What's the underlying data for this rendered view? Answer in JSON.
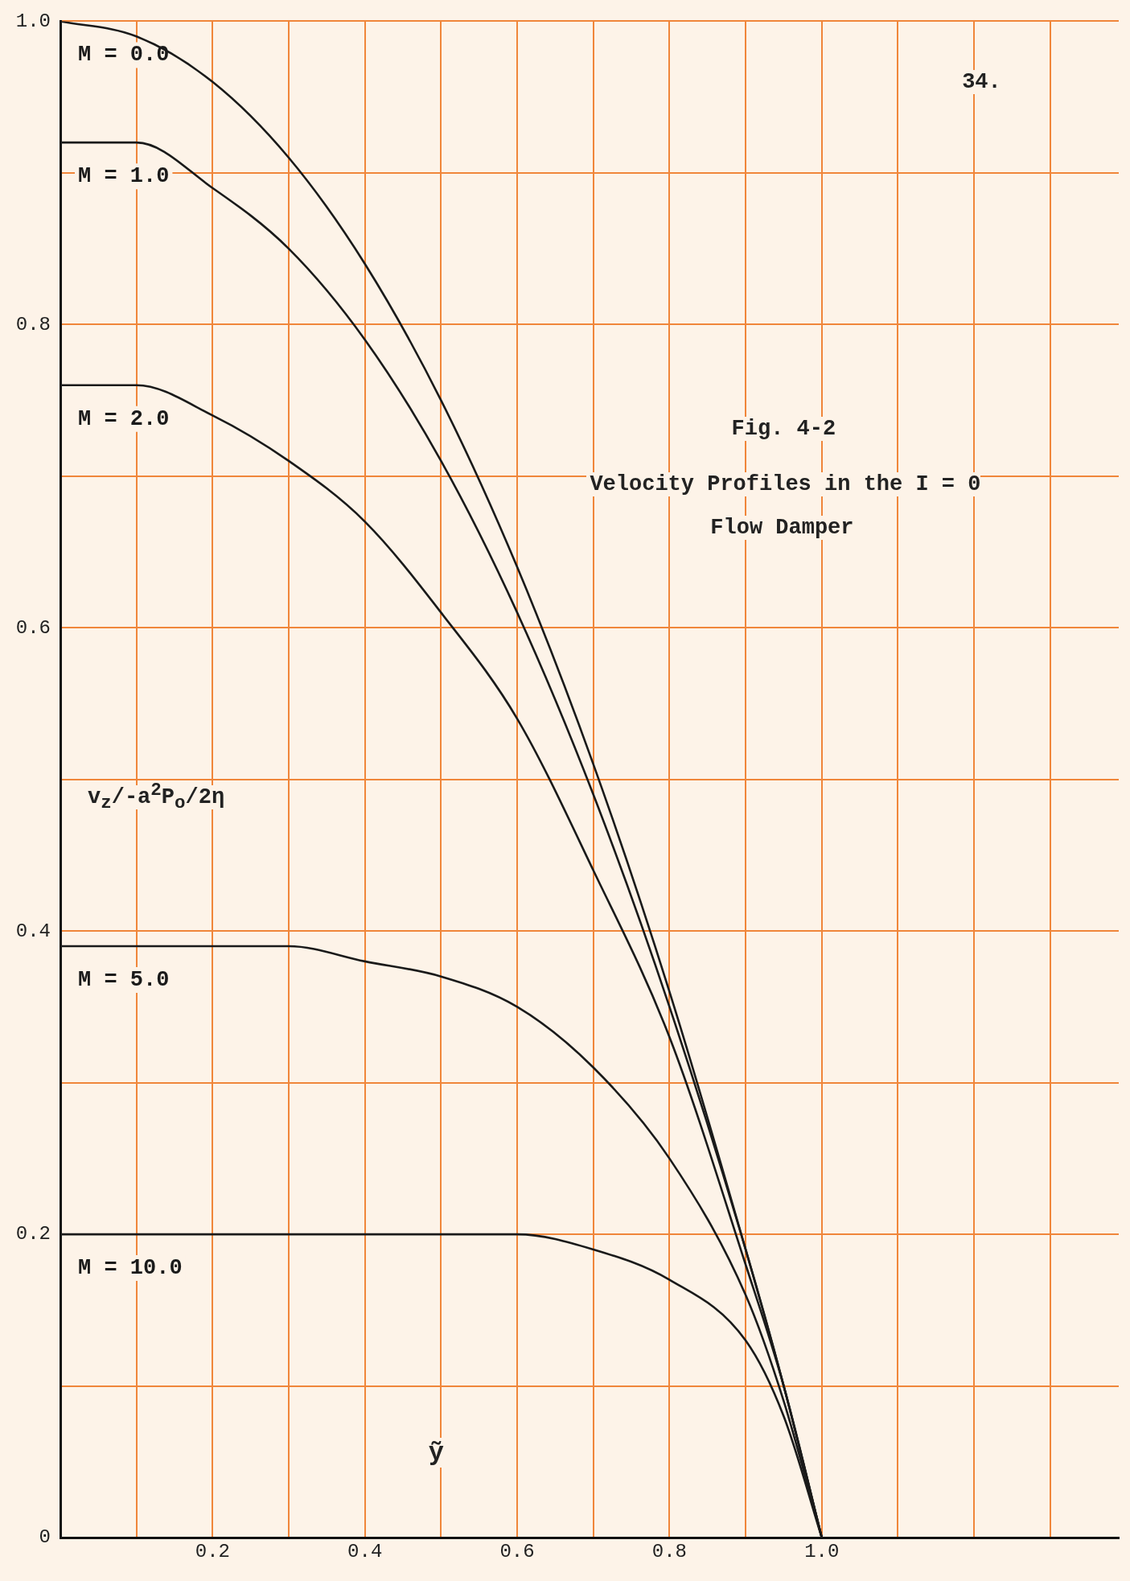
{
  "chart_data": {
    "type": "line",
    "title": "Fig. 4-2",
    "subtitle": "Velocity Profiles in the I = 0 Flow Damper",
    "xlabel": "ỹ",
    "ylabel": "v$_{z}$/-a$^{2}$P$_{o}$/2η",
    "annotations": [
      "34."
    ],
    "x": [
      0,
      0.1,
      0.2,
      0.3,
      0.4,
      0.5,
      0.6,
      0.7,
      0.8,
      0.9,
      0.95,
      1.0
    ],
    "series": [
      {
        "name": "M = 0.0",
        "color": "#1a1a1a",
        "values": [
          1.0,
          0.99,
          0.96,
          0.91,
          0.84,
          0.75,
          0.64,
          0.51,
          0.36,
          0.19,
          0.1,
          0
        ]
      },
      {
        "name": "M = 1.0",
        "color": "#1a1a1a",
        "values": [
          0.92,
          0.92,
          0.89,
          0.85,
          0.79,
          0.71,
          0.61,
          0.49,
          0.35,
          0.19,
          0.1,
          0
        ]
      },
      {
        "name": "M = 2.0",
        "color": "#1a1a1a",
        "values": [
          0.76,
          0.76,
          0.74,
          0.71,
          0.67,
          0.61,
          0.54,
          0.44,
          0.33,
          0.18,
          0.1,
          0
        ]
      },
      {
        "name": "M = 5.0",
        "color": "#1a1a1a",
        "values": [
          0.39,
          0.39,
          0.39,
          0.39,
          0.38,
          0.37,
          0.35,
          0.31,
          0.25,
          0.16,
          0.09,
          0
        ]
      },
      {
        "name": "M = 10.0",
        "color": "#1a1a1a",
        "values": [
          0.2,
          0.2,
          0.2,
          0.2,
          0.2,
          0.2,
          0.2,
          0.19,
          0.17,
          0.13,
          0.08,
          0
        ]
      }
    ],
    "xlim": [
      0,
      1.39
    ],
    "ylim": [
      0,
      1
    ],
    "xticks": [
      {
        "value": 0,
        "label": null
      },
      {
        "value": 0.1,
        "label": null
      },
      0.2,
      {
        "value": 0.3,
        "label": null
      },
      0.4,
      {
        "value": 0.5,
        "label": null
      },
      0.6,
      {
        "value": 0.7,
        "label": null
      },
      0.8,
      {
        "value": 0.9,
        "label": null
      },
      {
        "value": 1,
        "label": "1.0"
      },
      {
        "value": 1.1,
        "label": null
      },
      {
        "value": 1.2,
        "label": null
      },
      {
        "value": 1.3,
        "label": null
      }
    ],
    "yticks": [
      0,
      {
        "value": 0.1,
        "label": null
      },
      0.2,
      {
        "value": 0.3,
        "label": null
      },
      0.4,
      {
        "value": 0.5,
        "label": null
      },
      0.6,
      {
        "value": 0.7,
        "label": null
      },
      0.8,
      {
        "value": 0.9,
        "label": null
      },
      {
        "value": 1,
        "label": "1.0"
      }
    ],
    "grid": true,
    "legend": false,
    "marker": "none",
    "line_style": "solid"
  }
}
